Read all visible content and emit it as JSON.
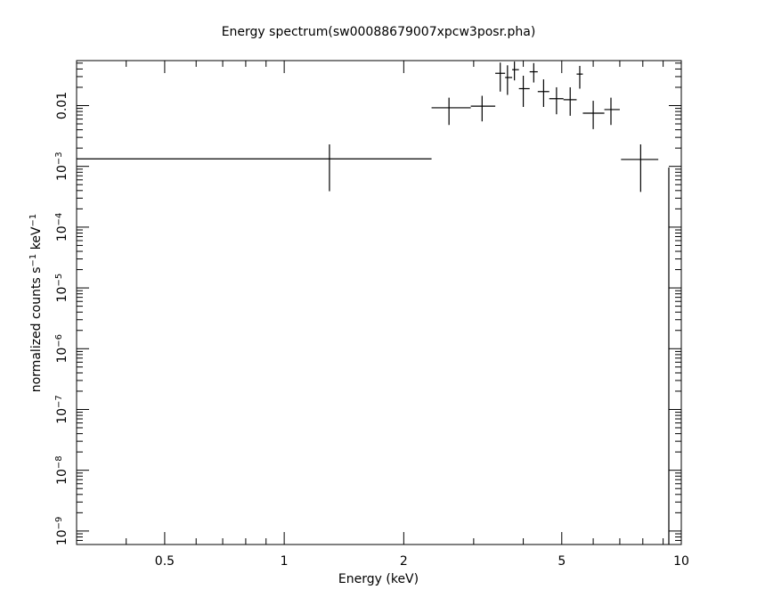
{
  "chart_data": {
    "type": "scatter",
    "title": "Energy spectrum(sw00088679007xpcw3posr.pha)",
    "xlabel": "Energy (keV)",
    "ylabel": "normalized counts s⁻¹ keV⁻¹",
    "x_scale": "log",
    "y_scale": "log",
    "xlim": [
      0.3,
      10.0
    ],
    "ylim": [
      6e-10,
      0.055
    ],
    "x_tick_labels": [
      {
        "value": 0.5,
        "label": "0.5"
      },
      {
        "value": 1,
        "label": "1"
      },
      {
        "value": 2,
        "label": "2"
      },
      {
        "value": 5,
        "label": "5"
      },
      {
        "value": 10,
        "label": "10"
      }
    ],
    "y_tick_labels": [
      {
        "value": 1e-09,
        "mantissa": "10",
        "exp": "−9"
      },
      {
        "value": 1e-08,
        "mantissa": "10",
        "exp": "−8"
      },
      {
        "value": 1e-07,
        "mantissa": "10",
        "exp": "−7"
      },
      {
        "value": 1e-06,
        "mantissa": "10",
        "exp": "−6"
      },
      {
        "value": 1e-05,
        "mantissa": "10",
        "exp": "−5"
      },
      {
        "value": 0.0001,
        "mantissa": "10",
        "exp": "−4"
      },
      {
        "value": 0.001,
        "mantissa": "10",
        "exp": "−3"
      },
      {
        "value": 0.01,
        "mantissa": "0.01",
        "exp": ""
      }
    ],
    "points": [
      {
        "x": 1.3,
        "xlo": 0.3,
        "xhi": 2.35,
        "y": 0.00133,
        "ylo": 0.00039,
        "yhi": 0.0023
      },
      {
        "x": 2.6,
        "xlo": 2.35,
        "xhi": 2.95,
        "y": 0.0092,
        "ylo": 0.0048,
        "yhi": 0.0135
      },
      {
        "x": 3.15,
        "xlo": 2.95,
        "xhi": 3.4,
        "y": 0.0098,
        "ylo": 0.0055,
        "yhi": 0.0145
      },
      {
        "x": 3.5,
        "xlo": 3.4,
        "xhi": 3.6,
        "y": 0.034,
        "ylo": 0.017,
        "yhi": 0.051
      },
      {
        "x": 3.65,
        "xlo": 3.6,
        "xhi": 3.75,
        "y": 0.029,
        "ylo": 0.015,
        "yhi": 0.046
      },
      {
        "x": 3.8,
        "xlo": 3.75,
        "xhi": 3.9,
        "y": 0.039,
        "ylo": 0.026,
        "yhi": 0.053
      },
      {
        "x": 4.0,
        "xlo": 3.9,
        "xhi": 4.15,
        "y": 0.019,
        "ylo": 0.0095,
        "yhi": 0.031
      },
      {
        "x": 4.25,
        "xlo": 4.15,
        "xhi": 4.35,
        "y": 0.036,
        "ylo": 0.024,
        "yhi": 0.05
      },
      {
        "x": 4.5,
        "xlo": 4.35,
        "xhi": 4.65,
        "y": 0.017,
        "ylo": 0.0095,
        "yhi": 0.027
      },
      {
        "x": 4.85,
        "xlo": 4.65,
        "xhi": 5.05,
        "y": 0.013,
        "ylo": 0.0072,
        "yhi": 0.02
      },
      {
        "x": 5.25,
        "xlo": 5.05,
        "xhi": 5.45,
        "y": 0.0125,
        "ylo": 0.0068,
        "yhi": 0.02
      },
      {
        "x": 5.55,
        "xlo": 5.45,
        "xhi": 5.65,
        "y": 0.033,
        "ylo": 0.019,
        "yhi": 0.045
      },
      {
        "x": 6.0,
        "xlo": 5.65,
        "xhi": 6.4,
        "y": 0.0075,
        "ylo": 0.0041,
        "yhi": 0.012
      },
      {
        "x": 6.65,
        "xlo": 6.4,
        "xhi": 7.0,
        "y": 0.0086,
        "ylo": 0.0048,
        "yhi": 0.0135
      },
      {
        "x": 7.9,
        "xlo": 7.05,
        "xhi": 8.75,
        "y": 0.0013,
        "ylo": 0.00038,
        "yhi": 0.0023
      }
    ],
    "grid": false,
    "legend": "none"
  }
}
